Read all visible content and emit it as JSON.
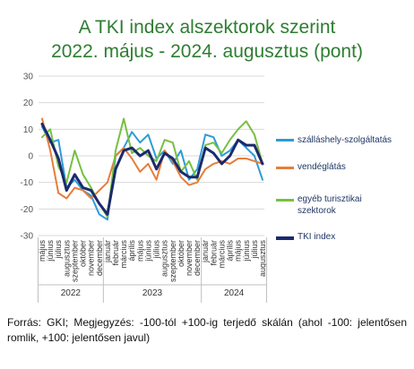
{
  "title_line1": "A TKI index alszektorok szerint",
  "title_line2": "2022. május - 2024. augusztus (pont)",
  "footer": "Forrás: GKI; Megjegyzés: -100-tól +100-ig terjedő skálán (ahol -100: jelentősen romlik, +100: jelentősen javul)",
  "chart_data": {
    "type": "line",
    "ylim": [
      -30,
      30
    ],
    "yticks": [
      30,
      20,
      10,
      0,
      -10,
      -20,
      -30
    ],
    "x": [
      "május",
      "június",
      "július",
      "augusztus",
      "szeptember",
      "október",
      "november",
      "december",
      "január",
      "február",
      "március",
      "április",
      "május",
      "június",
      "július",
      "augusztus",
      "szeptember",
      "október",
      "november",
      "december",
      "január",
      "február",
      "március",
      "április",
      "május",
      "június",
      "július",
      "augusztus"
    ],
    "year_groups": [
      {
        "label": "2022",
        "start": 0,
        "end": 7
      },
      {
        "label": "2023",
        "start": 8,
        "end": 19
      },
      {
        "label": "2024",
        "start": 20,
        "end": 27
      }
    ],
    "series": [
      {
        "name": "szálláshely-szolgáltatás",
        "color": "#2e9bd6",
        "width": 2,
        "values": [
          11,
          5,
          6,
          -12,
          -9,
          -13,
          -15,
          -22,
          -24,
          0,
          3,
          9,
          5,
          8,
          -1,
          2,
          -3,
          2,
          -9,
          -5,
          8,
          7,
          0,
          2,
          6,
          3,
          0,
          -9
        ]
      },
      {
        "name": "vendéglátás",
        "color": "#e67e3a",
        "width": 2,
        "values": [
          14,
          2,
          -14,
          -16,
          -12,
          -13,
          -16,
          -13,
          -10,
          0,
          3,
          -1,
          -6,
          -3,
          -9,
          2,
          -2,
          -8,
          -11,
          -10,
          -5,
          -3,
          -2,
          -3,
          -1,
          -1,
          -2,
          -3
        ]
      },
      {
        "name": "egyéb turisztikai szektorok",
        "color": "#76c043",
        "width": 2,
        "values": [
          7,
          10,
          -4,
          -10,
          2,
          -7,
          -12,
          -18,
          -23,
          2,
          14,
          1,
          3,
          0,
          -2,
          6,
          5,
          -6,
          -2,
          -9,
          4,
          5,
          1,
          6,
          10,
          13,
          8,
          -3
        ]
      },
      {
        "name": "TKI index",
        "color": "#1b2a6b",
        "width": 3,
        "values": [
          12,
          6,
          -1,
          -13,
          -7,
          -12,
          -13,
          -18,
          -22,
          -5,
          2,
          3,
          0,
          2,
          -5,
          1,
          -1,
          -6,
          -8,
          -8,
          3,
          1,
          -3,
          0,
          6,
          4,
          4,
          -3
        ]
      }
    ]
  }
}
